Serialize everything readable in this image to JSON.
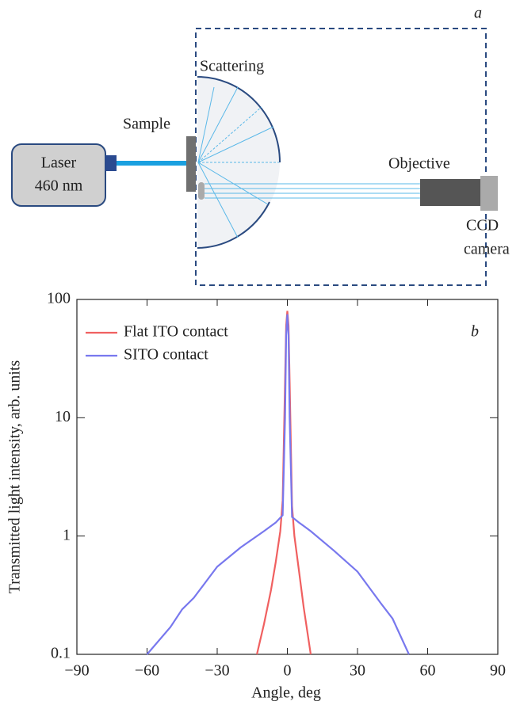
{
  "diagram": {
    "panel_label": "a",
    "laser": [
      "Laser",
      "460 nm"
    ],
    "sample": "Sample",
    "scattering": "Scattering",
    "objective": "Objective",
    "camera": [
      "CCD",
      "camera"
    ]
  },
  "chart_data": {
    "type": "line",
    "panel_label": "b",
    "x_label": "Angle, deg",
    "y_label": "Transmitted light intensity, arb. units",
    "xlim": [
      -90,
      90
    ],
    "xticks": [
      {
        "value": -90,
        "label": "−90"
      },
      {
        "value": -60,
        "label": "−60"
      },
      {
        "value": -30,
        "label": "−30"
      },
      0,
      30,
      60,
      90
    ],
    "ylim": [
      0.1,
      100
    ],
    "yticks": [
      0.1,
      1,
      10,
      100
    ],
    "yscale": "log",
    "legend": "upper-left",
    "series": [
      {
        "name": "Flat ITO contact",
        "color": "#f06060",
        "x": [
          -13,
          -10,
          -7,
          -5,
          -3,
          -2,
          -1,
          -0.5,
          0,
          0.5,
          1,
          2,
          3,
          5,
          7,
          10
        ],
        "values": [
          0.1,
          0.18,
          0.35,
          0.6,
          1.1,
          2,
          20,
          60,
          80,
          60,
          20,
          1.8,
          1,
          0.5,
          0.25,
          0.1
        ]
      },
      {
        "name": "SITO contact",
        "color": "#7878ee",
        "x": [
          -60,
          -50,
          -45,
          -40,
          -30,
          -20,
          -10,
          -5,
          -2,
          -1,
          -0.5,
          0,
          0.5,
          1,
          2,
          5,
          10,
          20,
          30,
          40,
          45,
          52
        ],
        "values": [
          0.1,
          0.17,
          0.24,
          0.3,
          0.55,
          0.8,
          1.1,
          1.3,
          1.5,
          10,
          50,
          75,
          50,
          10,
          1.45,
          1.3,
          1.1,
          0.75,
          0.5,
          0.27,
          0.2,
          0.1
        ]
      }
    ]
  }
}
